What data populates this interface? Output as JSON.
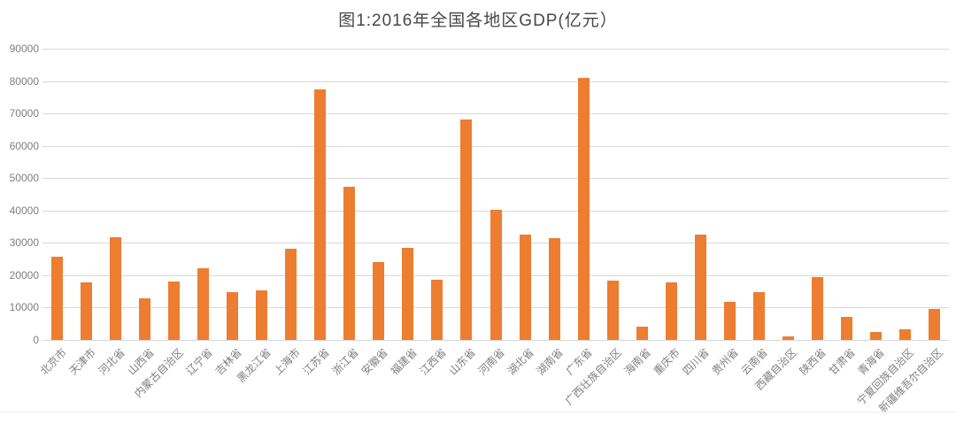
{
  "title": "图1:2016年全国各地区GDP(亿元）",
  "chart_data": {
    "type": "bar",
    "title": "图1:2016年全国各地区GDP(亿元）",
    "xlabel": "",
    "ylabel": "",
    "categories": [
      "北京市",
      "天津市",
      "河北省",
      "山西省",
      "内蒙古自治区",
      "辽宁省",
      "吉林省",
      "黑龙江省",
      "上海市",
      "江苏省",
      "浙江省",
      "安徽省",
      "福建省",
      "江西省",
      "山东省",
      "河南省",
      "湖北省",
      "湖南省",
      "广东省",
      "广西壮族自治区",
      "海南省",
      "重庆市",
      "四川省",
      "贵州省",
      "云南省",
      "西藏自治区",
      "陕西省",
      "甘肃省",
      "青海省",
      "宁夏回族自治区",
      "新疆维吾尔自治区"
    ],
    "values": [
      25669,
      17885,
      31828,
      12928,
      18128,
      22038,
      14777,
      15386,
      28179,
      77388,
      47251,
      24118,
      28519,
      18499,
      68024,
      40160,
      32665,
      31551,
      80855,
      18318,
      4053,
      17741,
      32681,
      11734,
      14870,
      1151,
      19399,
      7200,
      2572,
      3169,
      9617
    ],
    "ylim": [
      0,
      90000
    ],
    "yticks": [
      0,
      10000,
      20000,
      30000,
      40000,
      50000,
      60000,
      70000,
      80000,
      90000
    ],
    "grid": true,
    "legend": "none",
    "bar_color": "#ED7D31",
    "gridline_color": "#D9D9D9",
    "axis_label_color": "#7F7F7F",
    "title_color": "#474747",
    "background_color": "#FFFFFF"
  }
}
